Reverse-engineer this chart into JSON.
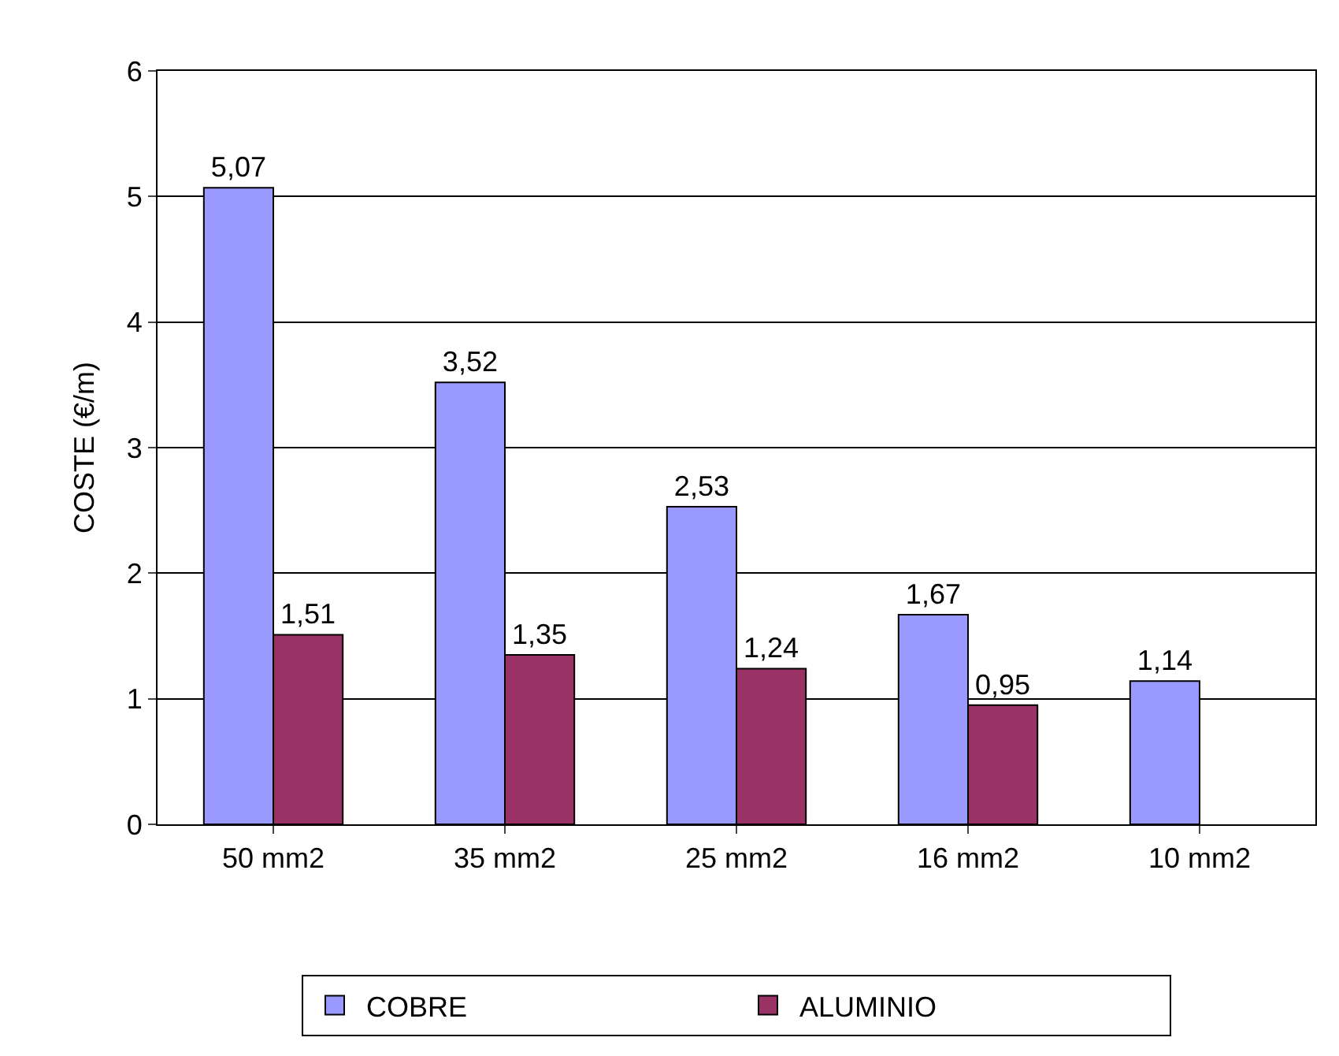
{
  "chart_data": {
    "type": "bar",
    "ylabel": "COSTE (€/m)",
    "categories": [
      "50 mm2",
      "35 mm2",
      "25 mm2",
      "16 mm2",
      "10 mm2"
    ],
    "series": [
      {
        "name": "COBRE",
        "color": "#9999ff",
        "values": [
          5.07,
          3.52,
          2.53,
          1.67,
          1.14
        ],
        "value_labels": [
          "5,07",
          "3,52",
          "2,53",
          "1,67",
          "1,14"
        ]
      },
      {
        "name": "ALUMINIO",
        "color": "#993366",
        "values": [
          1.51,
          1.35,
          1.24,
          0.95,
          null
        ],
        "value_labels": [
          "1,51",
          "1,35",
          "1,24",
          "0,95",
          null
        ]
      }
    ],
    "ylim": [
      0,
      6
    ],
    "yticks": [
      0,
      1,
      2,
      3,
      4,
      5,
      6
    ],
    "grid": "y",
    "legend": "bottom"
  }
}
